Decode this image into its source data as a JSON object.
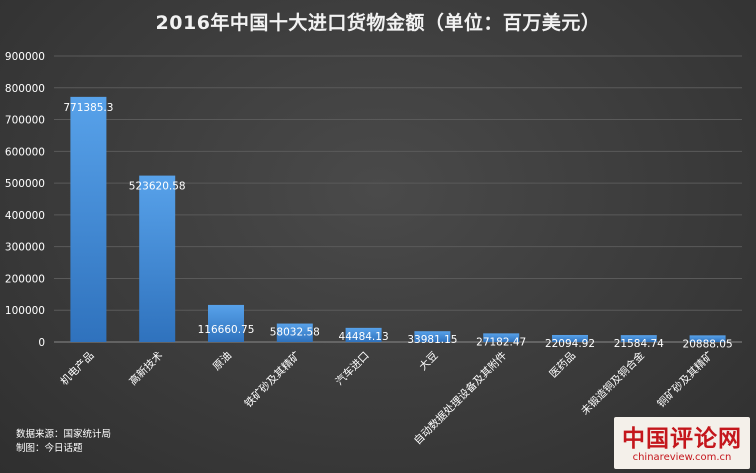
{
  "chart_data": {
    "type": "bar",
    "title": "2016年中国十大进口货物金额（单位：百万美元）",
    "categories": [
      "机电产品",
      "高新技术",
      "原油",
      "铁矿砂及其精矿",
      "汽车进口",
      "大豆",
      "自动数据处理设备及其附件",
      "医药品",
      "未锻造铜及铜合金",
      "铜矿砂及其精矿"
    ],
    "values": [
      771385.3,
      523620.58,
      116660.75,
      58032.58,
      44484.13,
      33981.15,
      27182.47,
      22094.92,
      21584.74,
      20888.05
    ],
    "value_labels": [
      "771385.3",
      "523620.58",
      "116660.75",
      "58032.58",
      "44484.13",
      "33981.15",
      "27182.47",
      "22094.92",
      "21584.74",
      "20888.05"
    ],
    "ylim": [
      0,
      900000
    ],
    "yticks": [
      "0",
      "100000",
      "200000",
      "300000",
      "400000",
      "500000",
      "600000",
      "700000",
      "800000",
      "900000"
    ],
    "xlabel": "",
    "ylabel": "",
    "grid": true,
    "legend": "none",
    "bar_color": "#4a90d9",
    "bar_color_dark": "#2f6fb5",
    "background_color": "#3b3b3b"
  },
  "source": {
    "data_source": "数据来源：国家统计局",
    "made_by": "制图：今日话题"
  },
  "watermark": {
    "logo": "中国评论网",
    "url": "chinareview.com.cn"
  }
}
